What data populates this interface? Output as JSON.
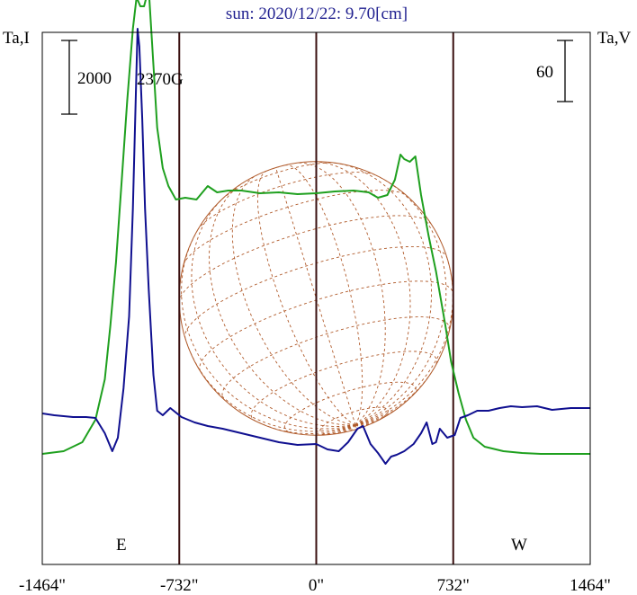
{
  "chart_data": {
    "type": "line",
    "title": "sun: 2020/12/22: 9.70[cm]",
    "y_left_label": "Ta,I",
    "y_right_label": "Ta,V",
    "scale_bar_left": "2000",
    "scale_bar_right": "60",
    "peak_label": "2370G",
    "limb_labels": [
      "E",
      "W"
    ],
    "x_tick_labels": [
      "-1464\"",
      "-732\"",
      "0\"",
      "732\"",
      "1464\""
    ],
    "x_ticks": [
      -1464,
      -732,
      0,
      732,
      1464
    ],
    "xlim": [
      -1464,
      1464
    ],
    "vertical_lines": [
      -732,
      0,
      732
    ],
    "limb_lines": [
      -732,
      732
    ],
    "disk_radius_arcsec": 732,
    "grid": true,
    "colors": {
      "intensity": "#1fa01f",
      "polarization": "#101090",
      "disk": "#b05a2a",
      "lines": "#3a1010",
      "title": "#1f1f8f"
    },
    "series": [
      {
        "name": "I",
        "points": [
          [
            -1464,
            -1.73
          ],
          [
            -1350,
            -1.7
          ],
          [
            -1250,
            -1.6
          ],
          [
            -1180,
            -1.35
          ],
          [
            -1130,
            -0.9
          ],
          [
            -1100,
            -0.3
          ],
          [
            -1070,
            0.4
          ],
          [
            -1040,
            1.3
          ],
          [
            -1010,
            2.2
          ],
          [
            -980,
            3.0
          ],
          [
            -960,
            3.35
          ],
          [
            -940,
            3.25
          ],
          [
            -920,
            3.25
          ],
          [
            -895,
            3.45
          ],
          [
            -870,
            2.6
          ],
          [
            -850,
            1.9
          ],
          [
            -820,
            1.45
          ],
          [
            -790,
            1.25
          ],
          [
            -750,
            1.1
          ],
          [
            -700,
            1.12
          ],
          [
            -640,
            1.1
          ],
          [
            -580,
            1.25
          ],
          [
            -530,
            1.18
          ],
          [
            -470,
            1.2
          ],
          [
            -400,
            1.2
          ],
          [
            -300,
            1.17
          ],
          [
            -200,
            1.18
          ],
          [
            -100,
            1.16
          ],
          [
            0,
            1.17
          ],
          [
            100,
            1.19
          ],
          [
            200,
            1.2
          ],
          [
            280,
            1.18
          ],
          [
            330,
            1.12
          ],
          [
            380,
            1.15
          ],
          [
            420,
            1.32
          ],
          [
            450,
            1.6
          ],
          [
            470,
            1.55
          ],
          [
            500,
            1.52
          ],
          [
            530,
            1.58
          ],
          [
            560,
            1.15
          ],
          [
            600,
            0.7
          ],
          [
            640,
            0.3
          ],
          [
            690,
            -0.3
          ],
          [
            720,
            -0.7
          ],
          [
            760,
            -1.05
          ],
          [
            800,
            -1.35
          ],
          [
            840,
            -1.55
          ],
          [
            900,
            -1.65
          ],
          [
            1000,
            -1.7
          ],
          [
            1100,
            -1.72
          ],
          [
            1200,
            -1.73
          ],
          [
            1464,
            -1.73
          ]
        ]
      },
      {
        "name": "V",
        "points": [
          [
            -1464,
            -1.28
          ],
          [
            -1400,
            -1.3
          ],
          [
            -1300,
            -1.32
          ],
          [
            -1230,
            -1.32
          ],
          [
            -1180,
            -1.33
          ],
          [
            -1130,
            -1.5
          ],
          [
            -1090,
            -1.7
          ],
          [
            -1060,
            -1.55
          ],
          [
            -1030,
            -1.0
          ],
          [
            -1000,
            -0.2
          ],
          [
            -980,
            1.0
          ],
          [
            -965,
            2.2
          ],
          [
            -955,
            3.0
          ],
          [
            -945,
            2.8
          ],
          [
            -930,
            2.0
          ],
          [
            -915,
            1.0
          ],
          [
            -895,
            0.1
          ],
          [
            -870,
            -0.85
          ],
          [
            -850,
            -1.25
          ],
          [
            -820,
            -1.3
          ],
          [
            -780,
            -1.22
          ],
          [
            -720,
            -1.32
          ],
          [
            -650,
            -1.38
          ],
          [
            -580,
            -1.42
          ],
          [
            -500,
            -1.45
          ],
          [
            -400,
            -1.5
          ],
          [
            -300,
            -1.55
          ],
          [
            -200,
            -1.6
          ],
          [
            -100,
            -1.63
          ],
          [
            0,
            -1.62
          ],
          [
            60,
            -1.68
          ],
          [
            120,
            -1.7
          ],
          [
            170,
            -1.6
          ],
          [
            220,
            -1.45
          ],
          [
            250,
            -1.42
          ],
          [
            290,
            -1.62
          ],
          [
            330,
            -1.72
          ],
          [
            370,
            -1.84
          ],
          [
            400,
            -1.76
          ],
          [
            430,
            -1.74
          ],
          [
            470,
            -1.7
          ],
          [
            520,
            -1.62
          ],
          [
            560,
            -1.5
          ],
          [
            590,
            -1.38
          ],
          [
            620,
            -1.62
          ],
          [
            640,
            -1.6
          ],
          [
            660,
            -1.45
          ],
          [
            700,
            -1.55
          ],
          [
            740,
            -1.52
          ],
          [
            770,
            -1.33
          ],
          [
            810,
            -1.3
          ],
          [
            860,
            -1.25
          ],
          [
            920,
            -1.25
          ],
          [
            980,
            -1.22
          ],
          [
            1040,
            -1.2
          ],
          [
            1100,
            -1.21
          ],
          [
            1180,
            -1.2
          ],
          [
            1260,
            -1.24
          ],
          [
            1360,
            -1.22
          ],
          [
            1464,
            -1.22
          ]
        ]
      }
    ]
  }
}
